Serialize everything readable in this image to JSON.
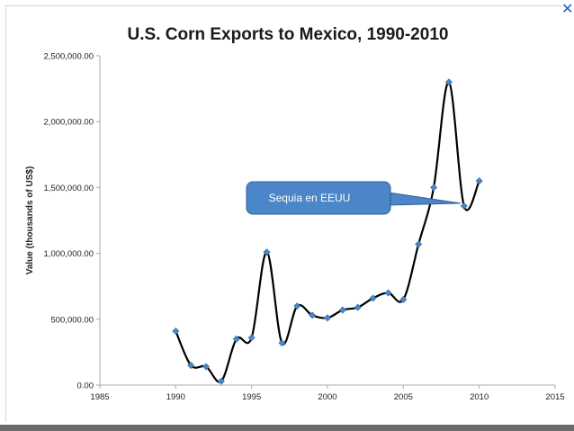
{
  "close_label": "✕",
  "chart_data": {
    "type": "line",
    "title": "U.S. Corn Exports to Mexico, 1990-2010",
    "xlabel": "",
    "ylabel": "Value (thousands of US$)",
    "xlim": [
      1985,
      2015
    ],
    "ylim": [
      0,
      2500000
    ],
    "x_ticks": [
      1985,
      1990,
      1995,
      2000,
      2005,
      2010,
      2015
    ],
    "x_tick_labels": [
      "1985",
      "1990",
      "1995",
      "2000",
      "2005",
      "2010",
      "2015"
    ],
    "y_ticks": [
      0,
      500000,
      1000000,
      1500000,
      2000000,
      2500000
    ],
    "y_tick_labels": [
      "0.00",
      "500,000.00",
      "1,000,000.00",
      "1,500,000.00",
      "2,000,000.00",
      "2,500,000.00"
    ],
    "grid": false,
    "line_color": "#000000",
    "marker_color": "#4a86c8",
    "x": [
      1990,
      1991,
      1992,
      1993,
      1994,
      1995,
      1996,
      1997,
      1998,
      1999,
      2000,
      2001,
      2002,
      2003,
      2004,
      2005,
      2006,
      2007,
      2008,
      2009,
      2010
    ],
    "y": [
      410000,
      150000,
      140000,
      30000,
      350000,
      360000,
      1010000,
      320000,
      600000,
      530000,
      510000,
      570000,
      590000,
      660000,
      700000,
      650000,
      1070000,
      1500000,
      2300000,
      1360000,
      1550000
    ],
    "annotation": {
      "text": "Sequia en EEUU",
      "fill_color": "#4a86c8",
      "points_to_x": 2009
    }
  }
}
